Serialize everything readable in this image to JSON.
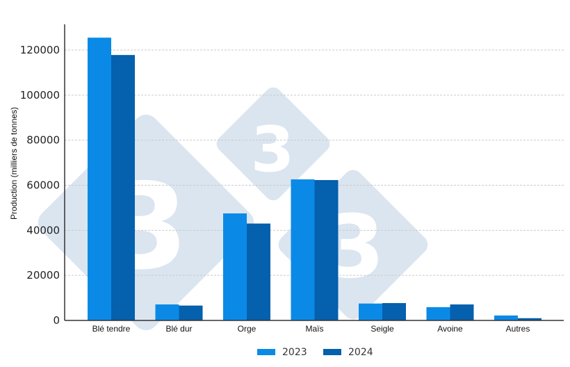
{
  "chart_data": {
    "type": "bar",
    "title": "",
    "xlabel": "",
    "ylabel": "Production (milliers de tonnes)",
    "categories": [
      "Blé tendre",
      "Blé dur",
      "Orge",
      "Maïs",
      "Seigle",
      "Avoine",
      "Autres"
    ],
    "series": [
      {
        "name": "2023",
        "color": "#0a8ae6",
        "values": [
          125500,
          7100,
          47500,
          62600,
          7500,
          5900,
          2200
        ]
      },
      {
        "name": "2024",
        "color": "#0560ad",
        "values": [
          117800,
          6600,
          43000,
          62300,
          7700,
          7100,
          1000
        ]
      }
    ],
    "ylim": [
      0,
      131000
    ],
    "yticks": [
      0,
      20000,
      40000,
      60000,
      80000,
      100000,
      120000
    ],
    "ytick_labels": [
      "0",
      "20000",
      "40000",
      "60000",
      "80000",
      "100000",
      "120000"
    ],
    "grid": "horizontal dashed",
    "legend_position": "bottom center"
  },
  "legend": [
    {
      "label": "2023",
      "color": "#0a8ae6"
    },
    {
      "label": "2024",
      "color": "#0560ad"
    }
  ],
  "watermark": {
    "glyph": "3",
    "color": "#dbe5f0"
  }
}
